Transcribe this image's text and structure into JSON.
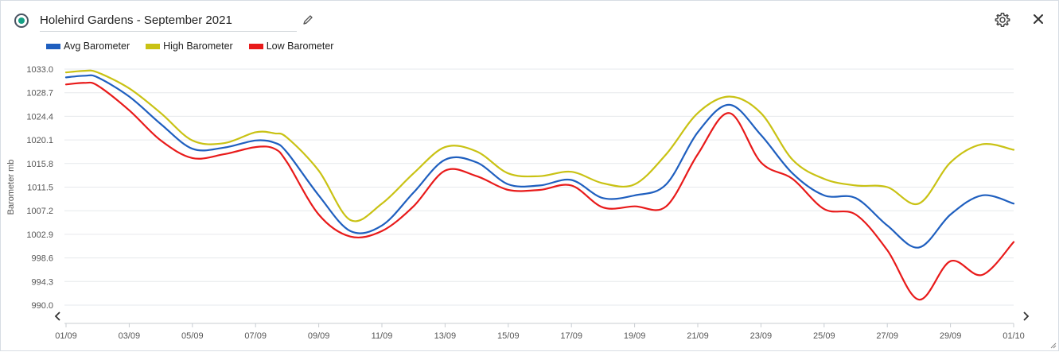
{
  "header": {
    "title": "Holehird Gardens - September 2021",
    "edit_icon": "pencil-icon",
    "settings_icon": "gear-icon",
    "close_icon": "close-icon",
    "status_color": "#16a085"
  },
  "chart_data": {
    "type": "line",
    "title": "",
    "xlabel": "",
    "ylabel": "Barometer mb",
    "ylim": [
      990.0,
      1033.0
    ],
    "xlim": [
      1.0,
      31.0
    ],
    "yticks": [
      "1033.0",
      "1028.7",
      "1024.4",
      "1020.1",
      "1015.8",
      "1011.5",
      "1007.2",
      "1002.9",
      "998.6",
      "994.3",
      "990.0"
    ],
    "xticks": [
      {
        "day": 1,
        "label": "01/09"
      },
      {
        "day": 3,
        "label": "03/09"
      },
      {
        "day": 5,
        "label": "05/09"
      },
      {
        "day": 7,
        "label": "07/09"
      },
      {
        "day": 9,
        "label": "09/09"
      },
      {
        "day": 11,
        "label": "11/09"
      },
      {
        "day": 13,
        "label": "13/09"
      },
      {
        "day": 15,
        "label": "15/09"
      },
      {
        "day": 17,
        "label": "17/09"
      },
      {
        "day": 19,
        "label": "19/09"
      },
      {
        "day": 21,
        "label": "21/09"
      },
      {
        "day": 23,
        "label": "23/09"
      },
      {
        "day": 25,
        "label": "25/09"
      },
      {
        "day": 27,
        "label": "27/09"
      },
      {
        "day": 29,
        "label": "29/09"
      },
      {
        "day": 31,
        "label": "01/10"
      }
    ],
    "grid": true,
    "legend": "top-left",
    "series": [
      {
        "name": "Avg Barometer",
        "color": "#1f5fbf",
        "points": [
          [
            1.0,
            1031.5
          ],
          [
            1.6,
            1031.8
          ],
          [
            2.0,
            1031.5
          ],
          [
            3.0,
            1028.0
          ],
          [
            4.0,
            1023.0
          ],
          [
            5.0,
            1018.5
          ],
          [
            6.0,
            1018.7
          ],
          [
            7.0,
            1020.0
          ],
          [
            7.6,
            1019.6
          ],
          [
            8.0,
            1017.8
          ],
          [
            9.0,
            1010.0
          ],
          [
            10.0,
            1003.5
          ],
          [
            11.0,
            1004.5
          ],
          [
            12.0,
            1010.5
          ],
          [
            13.0,
            1016.5
          ],
          [
            14.0,
            1016.0
          ],
          [
            15.0,
            1012.0
          ],
          [
            16.0,
            1011.8
          ],
          [
            17.0,
            1012.8
          ],
          [
            18.0,
            1009.5
          ],
          [
            19.0,
            1010.0
          ],
          [
            20.0,
            1012.0
          ],
          [
            21.0,
            1021.5
          ],
          [
            22.0,
            1026.5
          ],
          [
            23.0,
            1021.0
          ],
          [
            24.0,
            1014.0
          ],
          [
            25.0,
            1010.0
          ],
          [
            26.0,
            1009.5
          ],
          [
            27.0,
            1004.5
          ],
          [
            28.0,
            1000.5
          ],
          [
            29.0,
            1006.5
          ],
          [
            30.0,
            1010.0
          ],
          [
            31.0,
            1008.5
          ]
        ]
      },
      {
        "name": "High Barometer",
        "color": "#c9c214",
        "points": [
          [
            1.0,
            1032.4
          ],
          [
            1.6,
            1032.7
          ],
          [
            2.0,
            1032.4
          ],
          [
            3.0,
            1029.5
          ],
          [
            4.0,
            1025.0
          ],
          [
            5.0,
            1020.0
          ],
          [
            6.0,
            1019.5
          ],
          [
            7.0,
            1021.5
          ],
          [
            7.6,
            1021.3
          ],
          [
            8.0,
            1020.5
          ],
          [
            9.0,
            1014.5
          ],
          [
            10.0,
            1005.5
          ],
          [
            11.0,
            1008.5
          ],
          [
            12.0,
            1014.0
          ],
          [
            13.0,
            1018.8
          ],
          [
            14.0,
            1018.0
          ],
          [
            15.0,
            1014.0
          ],
          [
            16.0,
            1013.5
          ],
          [
            17.0,
            1014.3
          ],
          [
            18.0,
            1012.2
          ],
          [
            19.0,
            1012.0
          ],
          [
            20.0,
            1017.5
          ],
          [
            21.0,
            1025.0
          ],
          [
            22.0,
            1028.0
          ],
          [
            23.0,
            1025.0
          ],
          [
            24.0,
            1016.5
          ],
          [
            25.0,
            1013.0
          ],
          [
            26.0,
            1011.8
          ],
          [
            27.0,
            1011.5
          ],
          [
            28.0,
            1008.5
          ],
          [
            29.0,
            1016.0
          ],
          [
            30.0,
            1019.3
          ],
          [
            31.0,
            1018.3
          ]
        ]
      },
      {
        "name": "Low Barometer",
        "color": "#e81a1a",
        "points": [
          [
            1.0,
            1030.2
          ],
          [
            1.6,
            1030.5
          ],
          [
            2.0,
            1030.0
          ],
          [
            3.0,
            1025.5
          ],
          [
            4.0,
            1020.0
          ],
          [
            5.0,
            1016.8
          ],
          [
            6.0,
            1017.5
          ],
          [
            7.0,
            1018.8
          ],
          [
            7.6,
            1018.5
          ],
          [
            8.0,
            1016.0
          ],
          [
            9.0,
            1006.5
          ],
          [
            10.0,
            1002.5
          ],
          [
            11.0,
            1003.5
          ],
          [
            12.0,
            1008.0
          ],
          [
            13.0,
            1014.5
          ],
          [
            14.0,
            1013.5
          ],
          [
            15.0,
            1011.0
          ],
          [
            16.0,
            1011.0
          ],
          [
            17.0,
            1011.8
          ],
          [
            18.0,
            1007.8
          ],
          [
            19.0,
            1008.0
          ],
          [
            20.0,
            1008.0
          ],
          [
            21.0,
            1017.5
          ],
          [
            22.0,
            1025.0
          ],
          [
            23.0,
            1016.0
          ],
          [
            24.0,
            1013.0
          ],
          [
            25.0,
            1007.5
          ],
          [
            26.0,
            1006.5
          ],
          [
            27.0,
            1000.0
          ],
          [
            28.0,
            991.0
          ],
          [
            29.0,
            998.0
          ],
          [
            30.0,
            995.5
          ],
          [
            31.0,
            1001.5
          ]
        ]
      }
    ]
  }
}
